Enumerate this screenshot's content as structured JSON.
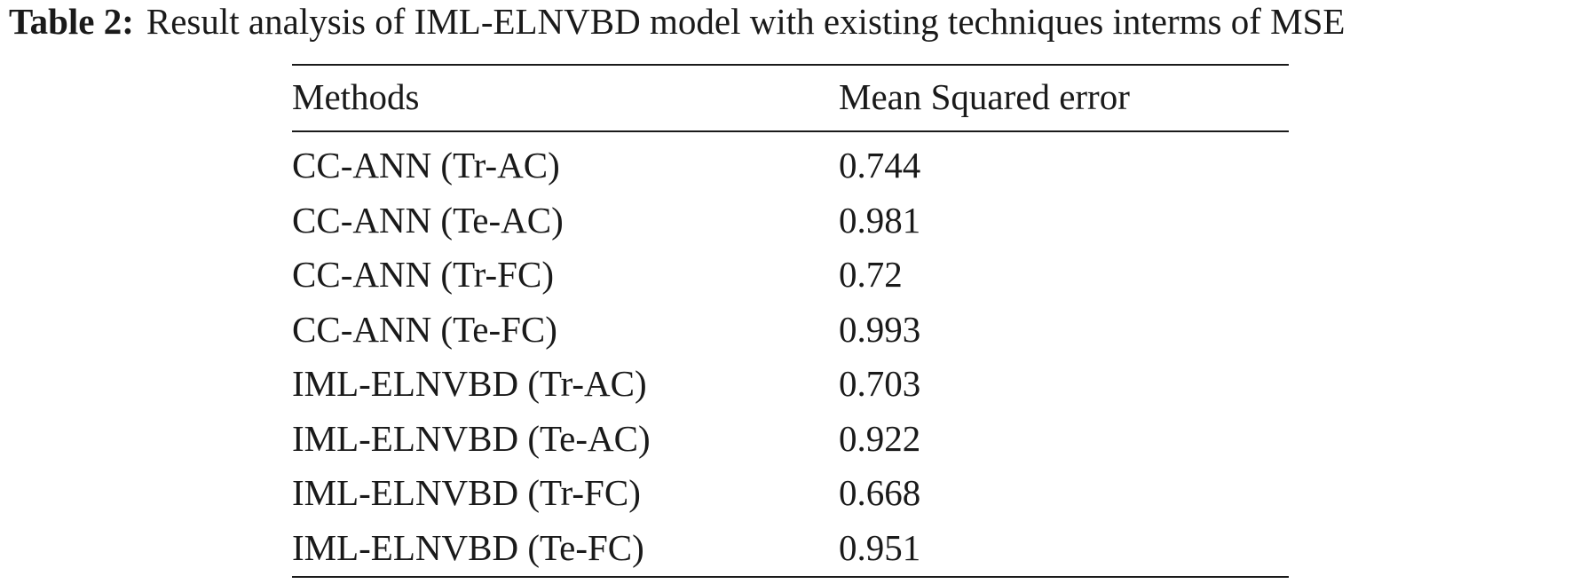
{
  "caption": {
    "label": "Table 2:",
    "text": "Result analysis of IML-ELNVBD model with existing techniques interms of MSE"
  },
  "table": {
    "headers": {
      "method": "Methods",
      "value": "Mean Squared error"
    },
    "rows": [
      {
        "method": "CC-ANN (Tr-AC)",
        "value": "0.744"
      },
      {
        "method": "CC-ANN (Te-AC)",
        "value": "0.981"
      },
      {
        "method": "CC-ANN (Tr-FC)",
        "value": "0.72"
      },
      {
        "method": "CC-ANN (Te-FC)",
        "value": "0.993"
      },
      {
        "method": "IML-ELNVBD (Tr-AC)",
        "value": "0.703"
      },
      {
        "method": "IML-ELNVBD (Te-AC)",
        "value": "0.922"
      },
      {
        "method": "IML-ELNVBD (Tr-FC)",
        "value": "0.668"
      },
      {
        "method": "IML-ELNVBD (Te-FC)",
        "value": "0.951"
      }
    ]
  }
}
